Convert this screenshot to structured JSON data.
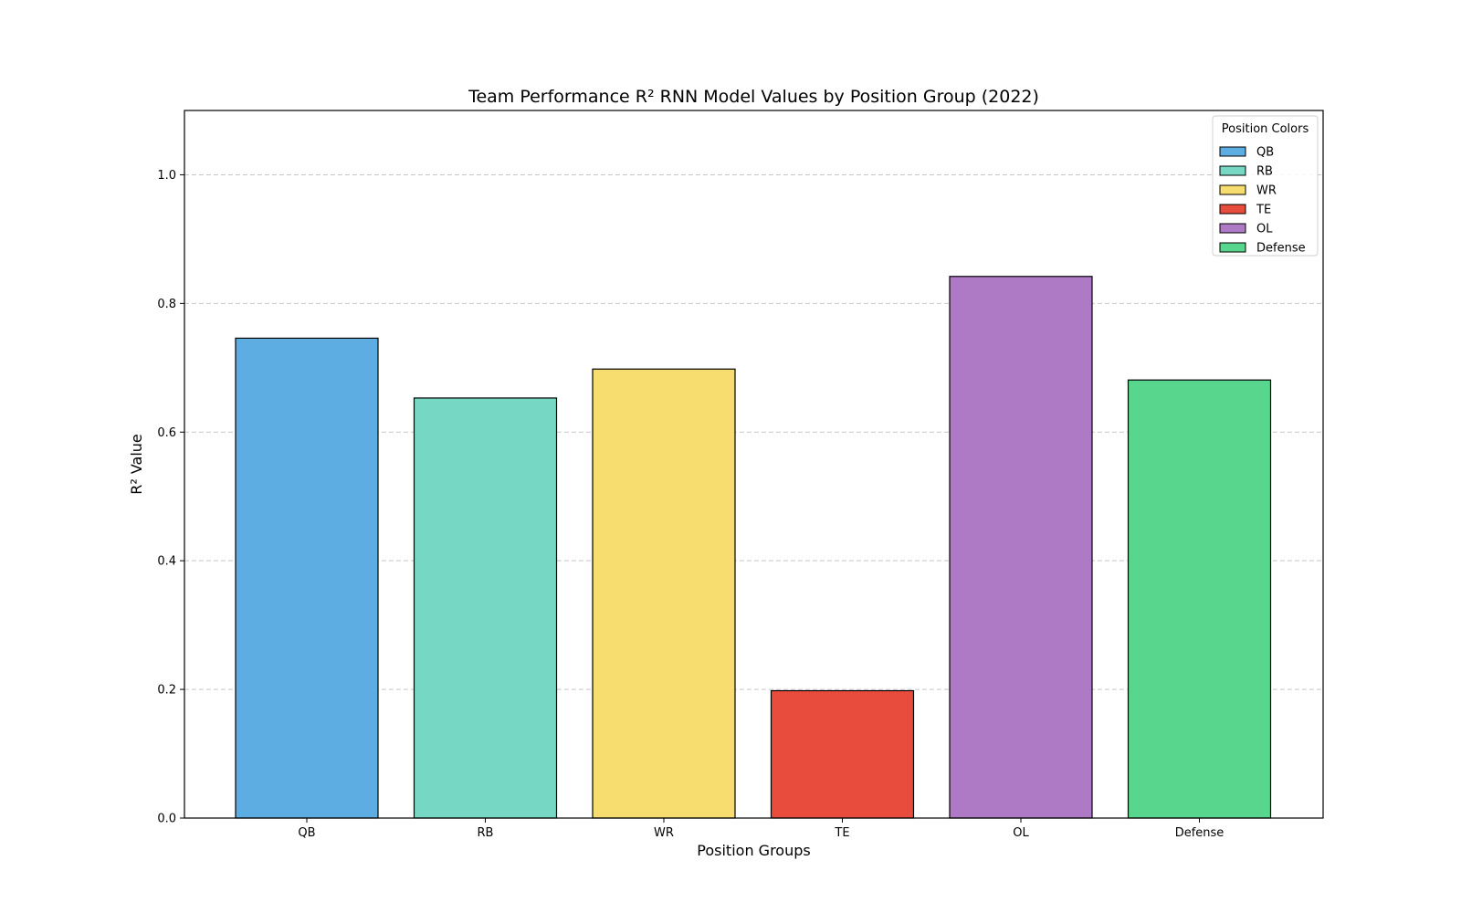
{
  "chart_data": {
    "type": "bar",
    "title": "Team Performance R² RNN Model Values by Position Group (2022)",
    "xlabel": "Position Groups",
    "ylabel": "R² Value",
    "categories": [
      "QB",
      "RB",
      "WR",
      "TE",
      "OL",
      "Defense"
    ],
    "values": [
      0.746,
      0.653,
      0.698,
      0.198,
      0.842,
      0.681
    ],
    "colors": [
      "#5dade2",
      "#76d7c4",
      "#f7dc6f",
      "#e74c3c",
      "#af7ac5",
      "#58d68d"
    ],
    "ylim": [
      0,
      1.1
    ],
    "yticks": [
      0.0,
      0.2,
      0.4,
      0.6,
      0.8,
      1.0
    ],
    "ytick_labels": [
      "0.0",
      "0.2",
      "0.4",
      "0.6",
      "0.8",
      "1.0"
    ],
    "grid": "y-dashed",
    "legend": {
      "title": "Position Colors",
      "placement": "top-right",
      "entries": [
        "QB",
        "RB",
        "WR",
        "TE",
        "OL",
        "Defense"
      ]
    }
  }
}
